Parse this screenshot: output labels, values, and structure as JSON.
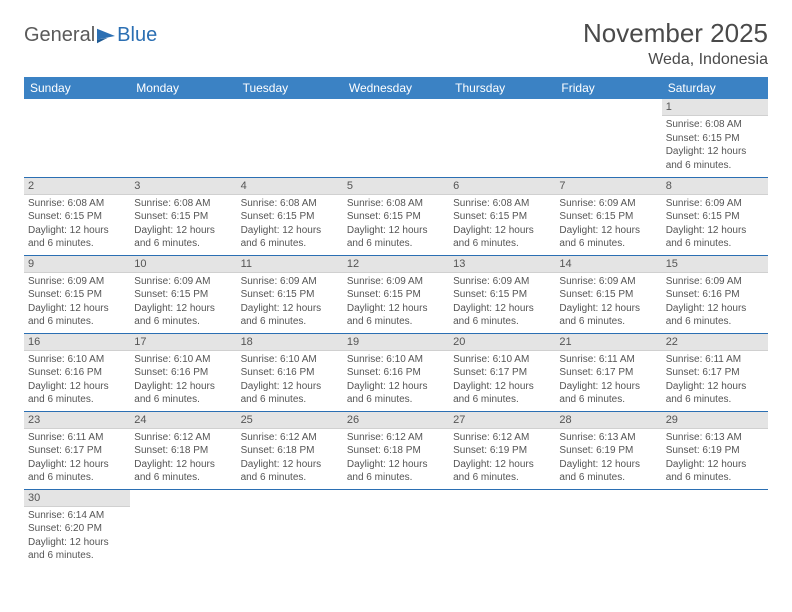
{
  "logo": {
    "text1": "General",
    "text2": "Blue"
  },
  "title": "November 2025",
  "location": "Weda, Indonesia",
  "colors": {
    "header_bg": "#3b82c4",
    "header_fg": "#ffffff",
    "daynum_bg": "#e4e4e4",
    "rule": "#2b6fb3",
    "logo_gray": "#5a5a5a",
    "logo_blue": "#2b6fb3"
  },
  "columns": [
    "Sunday",
    "Monday",
    "Tuesday",
    "Wednesday",
    "Thursday",
    "Friday",
    "Saturday"
  ],
  "weeks": [
    [
      {
        "empty": true
      },
      {
        "empty": true
      },
      {
        "empty": true
      },
      {
        "empty": true
      },
      {
        "empty": true
      },
      {
        "empty": true
      },
      {
        "day": 1,
        "sunrise": "6:08 AM",
        "sunset": "6:15 PM",
        "daylight": "12 hours and 6 minutes."
      }
    ],
    [
      {
        "day": 2,
        "sunrise": "6:08 AM",
        "sunset": "6:15 PM",
        "daylight": "12 hours and 6 minutes."
      },
      {
        "day": 3,
        "sunrise": "6:08 AM",
        "sunset": "6:15 PM",
        "daylight": "12 hours and 6 minutes."
      },
      {
        "day": 4,
        "sunrise": "6:08 AM",
        "sunset": "6:15 PM",
        "daylight": "12 hours and 6 minutes."
      },
      {
        "day": 5,
        "sunrise": "6:08 AM",
        "sunset": "6:15 PM",
        "daylight": "12 hours and 6 minutes."
      },
      {
        "day": 6,
        "sunrise": "6:08 AM",
        "sunset": "6:15 PM",
        "daylight": "12 hours and 6 minutes."
      },
      {
        "day": 7,
        "sunrise": "6:09 AM",
        "sunset": "6:15 PM",
        "daylight": "12 hours and 6 minutes."
      },
      {
        "day": 8,
        "sunrise": "6:09 AM",
        "sunset": "6:15 PM",
        "daylight": "12 hours and 6 minutes."
      }
    ],
    [
      {
        "day": 9,
        "sunrise": "6:09 AM",
        "sunset": "6:15 PM",
        "daylight": "12 hours and 6 minutes."
      },
      {
        "day": 10,
        "sunrise": "6:09 AM",
        "sunset": "6:15 PM",
        "daylight": "12 hours and 6 minutes."
      },
      {
        "day": 11,
        "sunrise": "6:09 AM",
        "sunset": "6:15 PM",
        "daylight": "12 hours and 6 minutes."
      },
      {
        "day": 12,
        "sunrise": "6:09 AM",
        "sunset": "6:15 PM",
        "daylight": "12 hours and 6 minutes."
      },
      {
        "day": 13,
        "sunrise": "6:09 AM",
        "sunset": "6:15 PM",
        "daylight": "12 hours and 6 minutes."
      },
      {
        "day": 14,
        "sunrise": "6:09 AM",
        "sunset": "6:15 PM",
        "daylight": "12 hours and 6 minutes."
      },
      {
        "day": 15,
        "sunrise": "6:09 AM",
        "sunset": "6:16 PM",
        "daylight": "12 hours and 6 minutes."
      }
    ],
    [
      {
        "day": 16,
        "sunrise": "6:10 AM",
        "sunset": "6:16 PM",
        "daylight": "12 hours and 6 minutes."
      },
      {
        "day": 17,
        "sunrise": "6:10 AM",
        "sunset": "6:16 PM",
        "daylight": "12 hours and 6 minutes."
      },
      {
        "day": 18,
        "sunrise": "6:10 AM",
        "sunset": "6:16 PM",
        "daylight": "12 hours and 6 minutes."
      },
      {
        "day": 19,
        "sunrise": "6:10 AM",
        "sunset": "6:16 PM",
        "daylight": "12 hours and 6 minutes."
      },
      {
        "day": 20,
        "sunrise": "6:10 AM",
        "sunset": "6:17 PM",
        "daylight": "12 hours and 6 minutes."
      },
      {
        "day": 21,
        "sunrise": "6:11 AM",
        "sunset": "6:17 PM",
        "daylight": "12 hours and 6 minutes."
      },
      {
        "day": 22,
        "sunrise": "6:11 AM",
        "sunset": "6:17 PM",
        "daylight": "12 hours and 6 minutes."
      }
    ],
    [
      {
        "day": 23,
        "sunrise": "6:11 AM",
        "sunset": "6:17 PM",
        "daylight": "12 hours and 6 minutes."
      },
      {
        "day": 24,
        "sunrise": "6:12 AM",
        "sunset": "6:18 PM",
        "daylight": "12 hours and 6 minutes."
      },
      {
        "day": 25,
        "sunrise": "6:12 AM",
        "sunset": "6:18 PM",
        "daylight": "12 hours and 6 minutes."
      },
      {
        "day": 26,
        "sunrise": "6:12 AM",
        "sunset": "6:18 PM",
        "daylight": "12 hours and 6 minutes."
      },
      {
        "day": 27,
        "sunrise": "6:12 AM",
        "sunset": "6:19 PM",
        "daylight": "12 hours and 6 minutes."
      },
      {
        "day": 28,
        "sunrise": "6:13 AM",
        "sunset": "6:19 PM",
        "daylight": "12 hours and 6 minutes."
      },
      {
        "day": 29,
        "sunrise": "6:13 AM",
        "sunset": "6:19 PM",
        "daylight": "12 hours and 6 minutes."
      }
    ],
    [
      {
        "day": 30,
        "sunrise": "6:14 AM",
        "sunset": "6:20 PM",
        "daylight": "12 hours and 6 minutes."
      },
      {
        "empty": true
      },
      {
        "empty": true
      },
      {
        "empty": true
      },
      {
        "empty": true
      },
      {
        "empty": true
      },
      {
        "empty": true
      }
    ]
  ],
  "labels": {
    "sunrise": "Sunrise: ",
    "sunset": "Sunset: ",
    "daylight": "Daylight: "
  }
}
